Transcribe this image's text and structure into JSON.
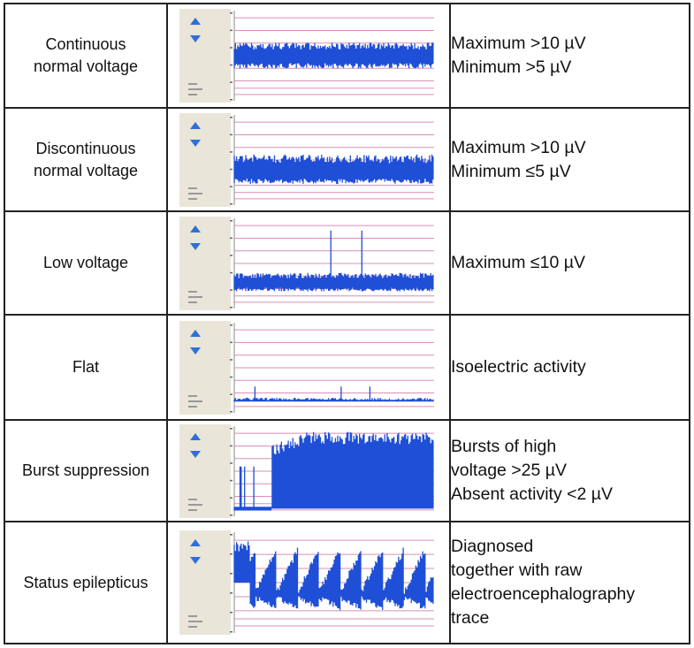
{
  "rows": [
    {
      "pattern_lines": [
        "Continuous",
        "normal voltage"
      ],
      "criteria_lines": [
        "Maximum >10 µV",
        "Minimum >5 µV"
      ],
      "trace_icon": "aeeg-continuous-trace"
    },
    {
      "pattern_lines": [
        "Discontinuous",
        "normal voltage"
      ],
      "criteria_lines": [
        "Maximum >10 µV",
        "Minimum ≤5 µV"
      ],
      "trace_icon": "aeeg-discontinuous-trace"
    },
    {
      "pattern_lines": [
        "Low voltage"
      ],
      "criteria_lines": [
        "Maximum ≤10 µV"
      ],
      "trace_icon": "aeeg-low-voltage-trace"
    },
    {
      "pattern_lines": [
        "Flat"
      ],
      "criteria_lines": [
        "Isoelectric activity"
      ],
      "trace_icon": "aeeg-flat-trace"
    },
    {
      "pattern_lines": [
        "Burst suppression"
      ],
      "criteria_lines": [
        "Bursts of high",
        "voltage >25 µV",
        "Absent activity <2 µV"
      ],
      "trace_icon": "aeeg-burst-suppression-trace"
    },
    {
      "pattern_lines": [
        "Status epilepticus"
      ],
      "criteria_lines": [
        "Diagnosed",
        "together with raw",
        "electroencephalography",
        "trace"
      ],
      "trace_icon": "aeeg-status-epilepticus-trace"
    }
  ],
  "colors": {
    "trace": "#1f4fd6",
    "grid_line": "#d98fb6",
    "panel": "#e9e5d8",
    "arrow": "#2f6fd8",
    "border": "#222222"
  }
}
